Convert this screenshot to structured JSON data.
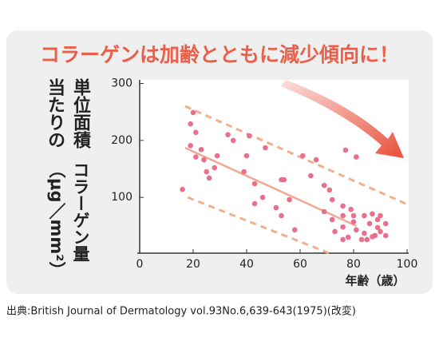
{
  "chart_data": {
    "type": "scatter",
    "title": "コラーゲンは加齢とともに減少傾向に！",
    "y_label": [
      "単位面積当たりの",
      "コラーゲン量（μg／mm²）"
    ],
    "x_label": "年齢（歳）",
    "source": "出典:British Journal of Dermatology vol.93No.6,639-643(1975)(改変)",
    "color": "#e8708a",
    "xlim": [
      0,
      100
    ],
    "xticks": [
      0,
      20,
      40,
      60,
      80,
      100
    ],
    "ylim": [
      0,
      300
    ],
    "yticks": [
      100,
      200,
      300
    ],
    "x": [
      16,
      20,
      19,
      21,
      19,
      23,
      21,
      24,
      25,
      28,
      26,
      29,
      33,
      35,
      40,
      39,
      41,
      43,
      43,
      46,
      47,
      53,
      54,
      51,
      56,
      58,
      53,
      61,
      64,
      69,
      71,
      72,
      69,
      66,
      77,
      81,
      76,
      79,
      72,
      73,
      76,
      78,
      80,
      81,
      83,
      84,
      86,
      87,
      89,
      84,
      87,
      90,
      90,
      92,
      85,
      80,
      76,
      88,
      89,
      92,
      76
    ],
    "y": [
      114,
      249,
      229,
      214,
      191,
      184,
      171,
      166,
      145,
      152,
      134,
      173,
      210,
      200,
      173,
      145,
      208,
      124,
      89,
      100,
      187,
      131,
      131,
      82,
      96,
      43,
      68,
      173,
      138,
      121,
      113,
      96,
      75,
      166,
      183,
      171,
      85,
      79,
      61,
      40,
      48,
      30,
      57,
      43,
      26,
      68,
      54,
      71,
      47,
      37,
      31,
      68,
      40,
      54,
      26,
      68,
      68,
      33,
      61,
      33,
      26
    ],
    "lines": [
      {
        "style": "solid",
        "color": "#f0a890",
        "x": [
          17,
          81
        ],
        "y": [
          187,
          50
        ]
      },
      {
        "style": "dashed",
        "color": "#f0b090",
        "x": [
          17,
          100
        ],
        "y": [
          260,
          88
        ]
      },
      {
        "style": "dashed",
        "color": "#f0b090",
        "x": [
          18,
          72
        ],
        "y": [
          100,
          0
        ]
      }
    ]
  }
}
